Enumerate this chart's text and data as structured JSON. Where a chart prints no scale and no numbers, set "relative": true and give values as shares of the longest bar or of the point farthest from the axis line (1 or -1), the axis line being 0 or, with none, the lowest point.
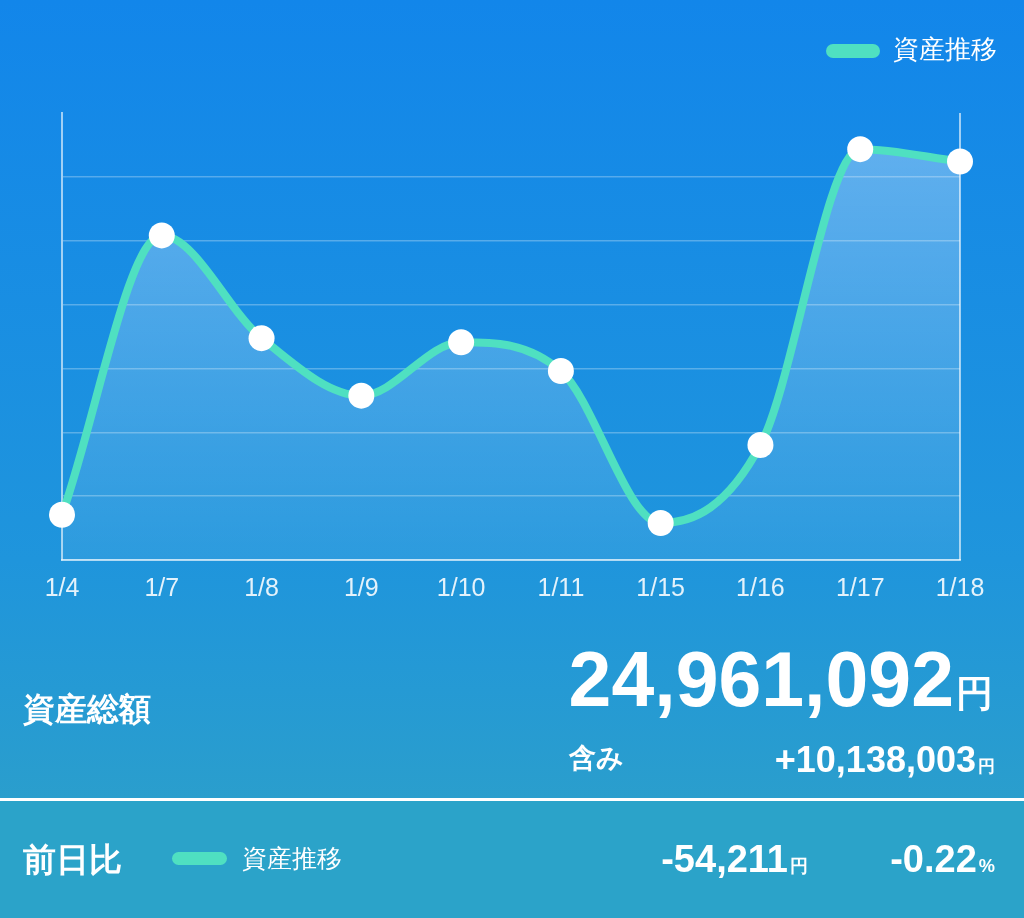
{
  "chart_data": {
    "type": "area",
    "categories": [
      "1/4",
      "1/7",
      "1/8",
      "1/9",
      "1/10",
      "1/11",
      "1/15",
      "1/16",
      "1/17",
      "1/18"
    ],
    "series": [
      {
        "name": "資産推移",
        "color": "#4fe0c1",
        "values": [
          0.11,
          0.79,
          0.54,
          0.4,
          0.53,
          0.46,
          0.09,
          0.28,
          1,
          0.97
        ]
      }
    ],
    "relative": true,
    "grid": "y",
    "legend": "top right",
    "marker": "circle",
    "line_style": "solid",
    "annotations": [
      "資産総額",
      "24,961,092円",
      "含み",
      "+10,138,003円",
      "前日比",
      "-54,211円",
      "-0.22%"
    ]
  }
}
